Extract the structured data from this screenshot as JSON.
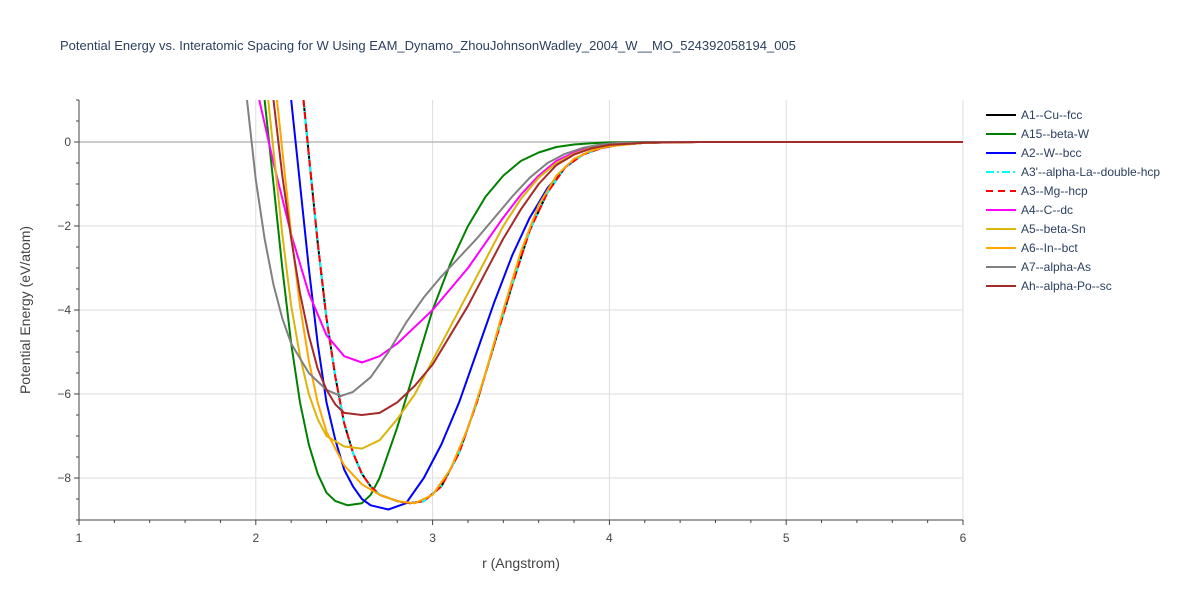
{
  "chart_data": {
    "type": "line",
    "title": "Potential Energy vs. Interatomic Spacing for W Using EAM_Dynamo_ZhouJohnsonWadley_2004_W__MO_524392058194_005",
    "xlabel": "r (Angstrom)",
    "ylabel": "Potential Energy (eV/atom)",
    "xlim": [
      1,
      6
    ],
    "ylim": [
      -9,
      1
    ],
    "xticks": [
      1,
      2,
      3,
      4,
      5,
      6
    ],
    "yticks": [
      0,
      -2,
      -4,
      -6,
      -8
    ],
    "ytick_labels": [
      "0",
      "−2",
      "−4",
      "−6",
      "−8"
    ],
    "grid": true,
    "legend_position": "right",
    "series": [
      {
        "name": "A1--Cu--fcc",
        "color": "#000000",
        "dash": "solid",
        "points": [
          [
            2.27,
            1
          ],
          [
            2.3,
            -0.3
          ],
          [
            2.35,
            -2.4
          ],
          [
            2.4,
            -4.2
          ],
          [
            2.45,
            -5.6
          ],
          [
            2.5,
            -6.7
          ],
          [
            2.55,
            -7.4
          ],
          [
            2.6,
            -7.9
          ],
          [
            2.65,
            -8.2
          ],
          [
            2.7,
            -8.4
          ],
          [
            2.8,
            -8.55
          ],
          [
            2.87,
            -8.6
          ],
          [
            2.95,
            -8.55
          ],
          [
            3.05,
            -8.2
          ],
          [
            3.15,
            -7.4
          ],
          [
            3.25,
            -6.2
          ],
          [
            3.35,
            -4.8
          ],
          [
            3.45,
            -3.4
          ],
          [
            3.55,
            -2.1
          ],
          [
            3.65,
            -1.2
          ],
          [
            3.75,
            -0.6
          ],
          [
            3.85,
            -0.3
          ],
          [
            3.95,
            -0.15
          ],
          [
            4.05,
            -0.07
          ],
          [
            4.2,
            -0.02
          ],
          [
            4.5,
            0
          ],
          [
            6,
            0
          ]
        ]
      },
      {
        "name": "A15--beta-W",
        "color": "#008000",
        "dash": "solid",
        "points": [
          [
            2.05,
            1
          ],
          [
            2.1,
            -1.0
          ],
          [
            2.15,
            -3.0
          ],
          [
            2.2,
            -4.8
          ],
          [
            2.25,
            -6.2
          ],
          [
            2.3,
            -7.2
          ],
          [
            2.35,
            -7.9
          ],
          [
            2.4,
            -8.35
          ],
          [
            2.45,
            -8.55
          ],
          [
            2.52,
            -8.65
          ],
          [
            2.6,
            -8.6
          ],
          [
            2.65,
            -8.4
          ],
          [
            2.7,
            -8.0
          ],
          [
            2.75,
            -7.4
          ],
          [
            2.8,
            -6.8
          ],
          [
            2.9,
            -5.4
          ],
          [
            3.0,
            -4.0
          ],
          [
            3.1,
            -2.9
          ],
          [
            3.2,
            -2.0
          ],
          [
            3.3,
            -1.3
          ],
          [
            3.4,
            -0.8
          ],
          [
            3.5,
            -0.45
          ],
          [
            3.6,
            -0.25
          ],
          [
            3.7,
            -0.12
          ],
          [
            3.8,
            -0.06
          ],
          [
            3.9,
            -0.03
          ],
          [
            4.0,
            -0.01
          ],
          [
            4.2,
            0
          ],
          [
            6,
            0
          ]
        ]
      },
      {
        "name": "A2--W--bcc",
        "color": "#0000ff",
        "dash": "solid",
        "points": [
          [
            2.2,
            1
          ],
          [
            2.25,
            -1.0
          ],
          [
            2.3,
            -3.0
          ],
          [
            2.35,
            -4.8
          ],
          [
            2.4,
            -6.2
          ],
          [
            2.45,
            -7.1
          ],
          [
            2.5,
            -7.8
          ],
          [
            2.55,
            -8.2
          ],
          [
            2.6,
            -8.5
          ],
          [
            2.65,
            -8.65
          ],
          [
            2.75,
            -8.75
          ],
          [
            2.85,
            -8.6
          ],
          [
            2.95,
            -8.0
          ],
          [
            3.05,
            -7.2
          ],
          [
            3.15,
            -6.2
          ],
          [
            3.25,
            -5.0
          ],
          [
            3.35,
            -3.8
          ],
          [
            3.45,
            -2.7
          ],
          [
            3.55,
            -1.8
          ],
          [
            3.65,
            -1.1
          ],
          [
            3.75,
            -0.6
          ],
          [
            3.85,
            -0.3
          ],
          [
            3.95,
            -0.15
          ],
          [
            4.05,
            -0.07
          ],
          [
            4.2,
            -0.02
          ],
          [
            4.5,
            0
          ],
          [
            6,
            0
          ]
        ]
      },
      {
        "name": "A3'--alpha-La--double-hcp",
        "color": "#00ffff",
        "dash": "dashdot",
        "points": [
          [
            2.27,
            1
          ],
          [
            2.3,
            -0.3
          ],
          [
            2.35,
            -2.4
          ],
          [
            2.4,
            -4.2
          ],
          [
            2.45,
            -5.6
          ],
          [
            2.5,
            -6.7
          ],
          [
            2.55,
            -7.4
          ],
          [
            2.6,
            -7.9
          ],
          [
            2.65,
            -8.2
          ],
          [
            2.7,
            -8.4
          ],
          [
            2.8,
            -8.55
          ],
          [
            2.87,
            -8.6
          ],
          [
            2.95,
            -8.55
          ],
          [
            3.05,
            -8.2
          ],
          [
            3.15,
            -7.4
          ],
          [
            3.25,
            -6.2
          ],
          [
            3.35,
            -4.8
          ],
          [
            3.45,
            -3.4
          ],
          [
            3.55,
            -2.1
          ],
          [
            3.65,
            -1.2
          ],
          [
            3.75,
            -0.6
          ],
          [
            3.85,
            -0.3
          ],
          [
            3.95,
            -0.15
          ],
          [
            4.05,
            -0.07
          ],
          [
            4.2,
            -0.02
          ],
          [
            4.5,
            0
          ],
          [
            6,
            0
          ]
        ]
      },
      {
        "name": "A3--Mg--hcp",
        "color": "#ff0000",
        "dash": "dash",
        "points": [
          [
            2.27,
            1
          ],
          [
            2.3,
            -0.3
          ],
          [
            2.35,
            -2.4
          ],
          [
            2.4,
            -4.2
          ],
          [
            2.45,
            -5.6
          ],
          [
            2.5,
            -6.7
          ],
          [
            2.55,
            -7.4
          ],
          [
            2.6,
            -7.9
          ],
          [
            2.65,
            -8.2
          ],
          [
            2.7,
            -8.4
          ],
          [
            2.8,
            -8.55
          ],
          [
            2.87,
            -8.6
          ],
          [
            2.95,
            -8.55
          ],
          [
            3.05,
            -8.2
          ],
          [
            3.15,
            -7.4
          ],
          [
            3.25,
            -6.2
          ],
          [
            3.35,
            -4.8
          ],
          [
            3.45,
            -3.4
          ],
          [
            3.55,
            -2.1
          ],
          [
            3.65,
            -1.2
          ],
          [
            3.75,
            -0.6
          ],
          [
            3.85,
            -0.3
          ],
          [
            3.95,
            -0.15
          ],
          [
            4.05,
            -0.07
          ],
          [
            4.2,
            -0.02
          ],
          [
            4.5,
            0
          ],
          [
            6,
            0
          ]
        ]
      },
      {
        "name": "A4--C--dc",
        "color": "#ff00ff",
        "dash": "solid",
        "points": [
          [
            2.02,
            1
          ],
          [
            2.1,
            -0.5
          ],
          [
            2.2,
            -2.2
          ],
          [
            2.3,
            -3.6
          ],
          [
            2.4,
            -4.6
          ],
          [
            2.5,
            -5.1
          ],
          [
            2.6,
            -5.25
          ],
          [
            2.7,
            -5.1
          ],
          [
            2.8,
            -4.8
          ],
          [
            2.9,
            -4.4
          ],
          [
            3.0,
            -4.0
          ],
          [
            3.1,
            -3.5
          ],
          [
            3.2,
            -3.0
          ],
          [
            3.3,
            -2.4
          ],
          [
            3.4,
            -1.8
          ],
          [
            3.5,
            -1.25
          ],
          [
            3.6,
            -0.8
          ],
          [
            3.7,
            -0.45
          ],
          [
            3.8,
            -0.25
          ],
          [
            3.9,
            -0.12
          ],
          [
            4.0,
            -0.05
          ],
          [
            4.2,
            -0.01
          ],
          [
            4.5,
            0
          ],
          [
            6,
            0
          ]
        ]
      },
      {
        "name": "A5--beta-Sn",
        "color": "#dbb40c",
        "dash": "solid",
        "points": [
          [
            2.07,
            1
          ],
          [
            2.1,
            -0.2
          ],
          [
            2.15,
            -2.2
          ],
          [
            2.2,
            -3.9
          ],
          [
            2.25,
            -5.1
          ],
          [
            2.3,
            -6.0
          ],
          [
            2.35,
            -6.6
          ],
          [
            2.4,
            -7.0
          ],
          [
            2.5,
            -7.25
          ],
          [
            2.6,
            -7.3
          ],
          [
            2.7,
            -7.1
          ],
          [
            2.8,
            -6.6
          ],
          [
            2.9,
            -6.0
          ],
          [
            3.0,
            -5.2
          ],
          [
            3.1,
            -4.4
          ],
          [
            3.2,
            -3.6
          ],
          [
            3.3,
            -2.8
          ],
          [
            3.4,
            -2.0
          ],
          [
            3.5,
            -1.35
          ],
          [
            3.6,
            -0.85
          ],
          [
            3.7,
            -0.5
          ],
          [
            3.8,
            -0.28
          ],
          [
            3.9,
            -0.14
          ],
          [
            4.0,
            -0.07
          ],
          [
            4.2,
            -0.02
          ],
          [
            4.5,
            0
          ],
          [
            6,
            0
          ]
        ]
      },
      {
        "name": "A6--In--bct",
        "color": "#ffa500",
        "dash": "solid",
        "points": [
          [
            2.12,
            1
          ],
          [
            2.15,
            -0.2
          ],
          [
            2.2,
            -2.2
          ],
          [
            2.25,
            -3.9
          ],
          [
            2.3,
            -5.2
          ],
          [
            2.35,
            -6.2
          ],
          [
            2.4,
            -6.9
          ],
          [
            2.5,
            -7.7
          ],
          [
            2.6,
            -8.15
          ],
          [
            2.7,
            -8.4
          ],
          [
            2.8,
            -8.55
          ],
          [
            2.9,
            -8.6
          ],
          [
            3.0,
            -8.4
          ],
          [
            3.1,
            -7.8
          ],
          [
            3.2,
            -6.8
          ],
          [
            3.3,
            -5.5
          ],
          [
            3.4,
            -4.0
          ],
          [
            3.5,
            -2.6
          ],
          [
            3.6,
            -1.5
          ],
          [
            3.7,
            -0.8
          ],
          [
            3.8,
            -0.4
          ],
          [
            3.9,
            -0.2
          ],
          [
            4.0,
            -0.1
          ],
          [
            4.2,
            -0.02
          ],
          [
            4.5,
            0
          ],
          [
            6,
            0
          ]
        ]
      },
      {
        "name": "A7--alpha-As",
        "color": "#808080",
        "dash": "solid",
        "points": [
          [
            1.95,
            1
          ],
          [
            2.0,
            -0.9
          ],
          [
            2.05,
            -2.3
          ],
          [
            2.1,
            -3.4
          ],
          [
            2.15,
            -4.2
          ],
          [
            2.2,
            -4.8
          ],
          [
            2.3,
            -5.5
          ],
          [
            2.4,
            -5.9
          ],
          [
            2.48,
            -6.05
          ],
          [
            2.55,
            -5.95
          ],
          [
            2.65,
            -5.6
          ],
          [
            2.75,
            -5.0
          ],
          [
            2.85,
            -4.3
          ],
          [
            2.95,
            -3.7
          ],
          [
            3.05,
            -3.2
          ],
          [
            3.15,
            -2.75
          ],
          [
            3.25,
            -2.3
          ],
          [
            3.35,
            -1.8
          ],
          [
            3.45,
            -1.3
          ],
          [
            3.55,
            -0.85
          ],
          [
            3.65,
            -0.5
          ],
          [
            3.75,
            -0.28
          ],
          [
            3.85,
            -0.14
          ],
          [
            3.95,
            -0.06
          ],
          [
            4.05,
            -0.02
          ],
          [
            4.3,
            0
          ],
          [
            6,
            0
          ]
        ]
      },
      {
        "name": "Ah--alpha-Po--sc",
        "color": "#a52a2a",
        "dash": "solid",
        "points": [
          [
            2.1,
            1
          ],
          [
            2.15,
            -0.8
          ],
          [
            2.2,
            -2.3
          ],
          [
            2.25,
            -3.6
          ],
          [
            2.3,
            -4.6
          ],
          [
            2.35,
            -5.4
          ],
          [
            2.4,
            -5.9
          ],
          [
            2.45,
            -6.25
          ],
          [
            2.5,
            -6.45
          ],
          [
            2.6,
            -6.5
          ],
          [
            2.7,
            -6.45
          ],
          [
            2.8,
            -6.2
          ],
          [
            2.9,
            -5.8
          ],
          [
            3.0,
            -5.3
          ],
          [
            3.1,
            -4.6
          ],
          [
            3.2,
            -3.9
          ],
          [
            3.3,
            -3.1
          ],
          [
            3.4,
            -2.3
          ],
          [
            3.5,
            -1.6
          ],
          [
            3.6,
            -1.0
          ],
          [
            3.7,
            -0.55
          ],
          [
            3.8,
            -0.3
          ],
          [
            3.9,
            -0.15
          ],
          [
            4.0,
            -0.07
          ],
          [
            4.2,
            -0.02
          ],
          [
            4.5,
            0
          ],
          [
            6,
            0
          ]
        ]
      }
    ]
  }
}
